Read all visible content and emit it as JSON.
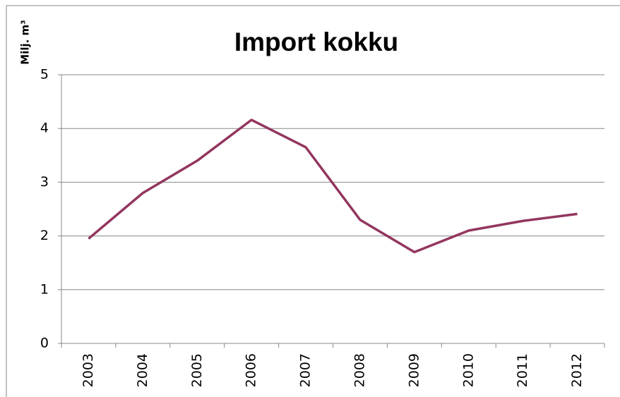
{
  "chart_data": {
    "type": "line",
    "title": "Import kokku",
    "ylabel": "Milj. m³",
    "categories": [
      "2003",
      "2004",
      "2005",
      "2006",
      "2007",
      "2008",
      "2009",
      "2010",
      "2011",
      "2012"
    ],
    "series": [
      {
        "name": "Import kokku",
        "color": "#93365f",
        "values": [
          1.95,
          2.8,
          3.4,
          4.16,
          3.65,
          2.3,
          1.7,
          2.1,
          2.28,
          2.41
        ]
      }
    ],
    "ylim": [
      0,
      5
    ],
    "yticks": [
      0,
      1,
      2,
      3,
      4,
      5
    ],
    "grid": true
  }
}
